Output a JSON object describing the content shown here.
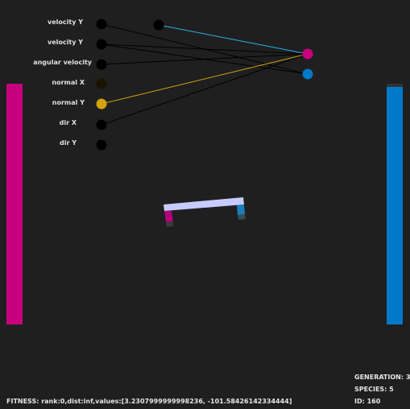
{
  "colors": {
    "background": "#1f1f1f",
    "left_paddle": "#c8007f",
    "right_paddle": "#0079c8",
    "right_paddle_cap": "#333333",
    "active_input": "#d4a10f",
    "inactive_input": "#000000",
    "dim_input": "#1a1300",
    "output_magenta": "#c8007f",
    "output_blue": "#0079c8",
    "edge_cyan": "#2bb0e8",
    "edge_yellow": "#d4a10f",
    "edge_black": "#000000",
    "platform": "#c6ccff"
  },
  "network": {
    "inputs": [
      {
        "label": "velocity Y",
        "color": "#000000"
      },
      {
        "label": "velocity Y",
        "color": "#000000"
      },
      {
        "label": "angular velocity",
        "color": "#000000"
      },
      {
        "label": "normal X",
        "color": "#1a1300"
      },
      {
        "label": "normal Y",
        "color": "#d4a10f"
      },
      {
        "label": "dir X",
        "color": "#000000"
      },
      {
        "label": "dir Y",
        "color": "#000000"
      }
    ],
    "hidden": [
      {
        "color": "#000000"
      }
    ],
    "outputs": [
      {
        "color": "#c8007f"
      },
      {
        "color": "#0079c8"
      }
    ]
  },
  "stats": {
    "generation": "GENERATION: 3",
    "species": "SPECIES: 5",
    "id": "ID: 160"
  },
  "fitness": "FITNESS: rank:0,dist:inf,values:[3.2307999999998236, -101.58426142334444]"
}
